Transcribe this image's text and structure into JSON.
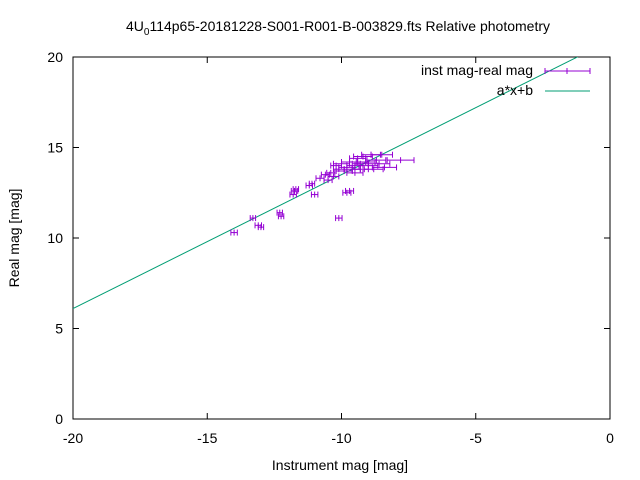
{
  "chart_data": {
    "type": "scatter",
    "title_parts": [
      "4U",
      "0",
      "114p65-20181228-S001-R001-B-003829.fts Relative photometry"
    ],
    "xlabel": "Instrument mag [mag]",
    "ylabel": "Real mag [mag]",
    "xlim": [
      -20,
      0
    ],
    "ylim": [
      0,
      20
    ],
    "xticks": [
      -20,
      -15,
      -10,
      -5,
      0
    ],
    "yticks": [
      0,
      5,
      10,
      15,
      20
    ],
    "xtick_labels": [
      "-20",
      "-15",
      "-10",
      "-5",
      "0"
    ],
    "ytick_labels": [
      "0",
      "5",
      "10",
      "15",
      "20"
    ],
    "legend_position": "top-right",
    "colors": {
      "points": "#9400d3",
      "fit": "#009e73"
    },
    "series": [
      {
        "name": "inst mag-real mag",
        "kind": "errorbars",
        "points": [
          [
            -14.0,
            10.3,
            0.12
          ],
          [
            -13.3,
            11.1,
            0.1
          ],
          [
            -13.1,
            10.7,
            0.12
          ],
          [
            -13.0,
            10.6,
            0.1
          ],
          [
            -12.3,
            11.4,
            0.1
          ],
          [
            -12.25,
            11.2,
            0.1
          ],
          [
            -11.8,
            12.4,
            0.12
          ],
          [
            -11.75,
            12.6,
            0.12
          ],
          [
            -11.7,
            12.7,
            0.1
          ],
          [
            -11.2,
            12.9,
            0.12
          ],
          [
            -11.1,
            13.0,
            0.1
          ],
          [
            -11.0,
            12.4,
            0.12
          ],
          [
            -10.8,
            13.3,
            0.15
          ],
          [
            -10.6,
            13.5,
            0.15
          ],
          [
            -10.5,
            13.2,
            0.15
          ],
          [
            -10.4,
            13.6,
            0.15
          ],
          [
            -10.3,
            13.4,
            0.2
          ],
          [
            -10.2,
            14.0,
            0.2
          ],
          [
            -10.1,
            11.1,
            0.12
          ],
          [
            -10.1,
            13.8,
            0.2
          ],
          [
            -10.0,
            14.1,
            0.3
          ],
          [
            -9.9,
            13.7,
            0.3
          ],
          [
            -9.8,
            13.9,
            0.3
          ],
          [
            -9.8,
            12.5,
            0.15
          ],
          [
            -9.7,
            14.2,
            0.3
          ],
          [
            -9.7,
            12.6,
            0.15
          ],
          [
            -9.6,
            13.8,
            0.3
          ],
          [
            -9.5,
            14.0,
            0.3
          ],
          [
            -9.5,
            13.6,
            0.3
          ],
          [
            -9.4,
            14.4,
            0.3
          ],
          [
            -9.3,
            14.1,
            0.3
          ],
          [
            -9.3,
            13.8,
            0.3
          ],
          [
            -9.2,
            14.5,
            0.35
          ],
          [
            -9.1,
            14.2,
            0.35
          ],
          [
            -9.0,
            14.0,
            0.35
          ],
          [
            -8.9,
            14.6,
            0.35
          ],
          [
            -8.8,
            13.8,
            0.35
          ],
          [
            -8.7,
            14.3,
            0.35
          ],
          [
            -8.6,
            14.1,
            0.4
          ],
          [
            -8.5,
            14.6,
            0.4
          ],
          [
            -8.4,
            13.9,
            0.45
          ],
          [
            -7.8,
            14.3,
            0.5
          ]
        ]
      },
      {
        "name": "a*x+b",
        "kind": "line",
        "slope": 0.74,
        "intercept": 20.9
      }
    ]
  }
}
